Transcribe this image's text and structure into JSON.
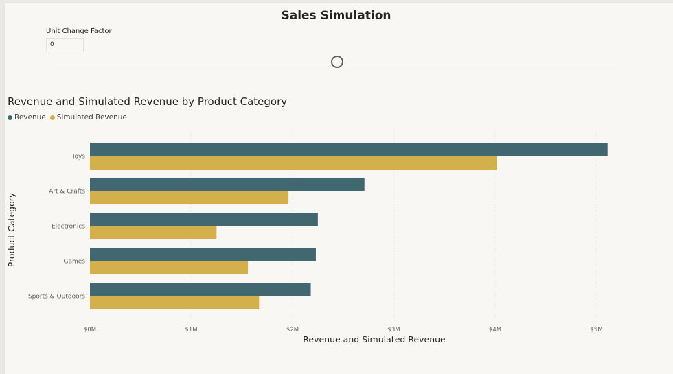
{
  "page": {
    "title": "Sales Simulation"
  },
  "slicer": {
    "label": "Unit Change Factor",
    "value": "0"
  },
  "colors": {
    "revenue": "#416770",
    "simulated": "#d4b04c",
    "grid": "#e2e1dd",
    "tick_text": "#605e5c",
    "axis_title": "#252423"
  },
  "chart_data": {
    "type": "bar",
    "orientation": "horizontal",
    "title": "Revenue and Simulated Revenue by Product Category",
    "xlabel": "Revenue and Simulated Revenue",
    "ylabel": "Product Category",
    "categories": [
      "Toys",
      "Art & Crafts",
      "Electronics",
      "Games",
      "Sports & Outdoors"
    ],
    "series": [
      {
        "name": "Revenue",
        "values": [
          5.11,
          2.71,
          2.25,
          2.23,
          2.18
        ]
      },
      {
        "name": "Simulated Revenue",
        "values": [
          4.02,
          1.96,
          1.25,
          1.56,
          1.67
        ]
      }
    ],
    "xlim": [
      0,
      5.2
    ],
    "x_ticks": [
      0,
      1,
      2,
      3,
      4,
      5
    ],
    "x_tick_labels": [
      "$0M",
      "$1M",
      "$2M",
      "$3M",
      "$4M",
      "$5M"
    ],
    "value_unit": "millions USD",
    "grid": "vertical dotted",
    "legend_position": "top-left"
  }
}
